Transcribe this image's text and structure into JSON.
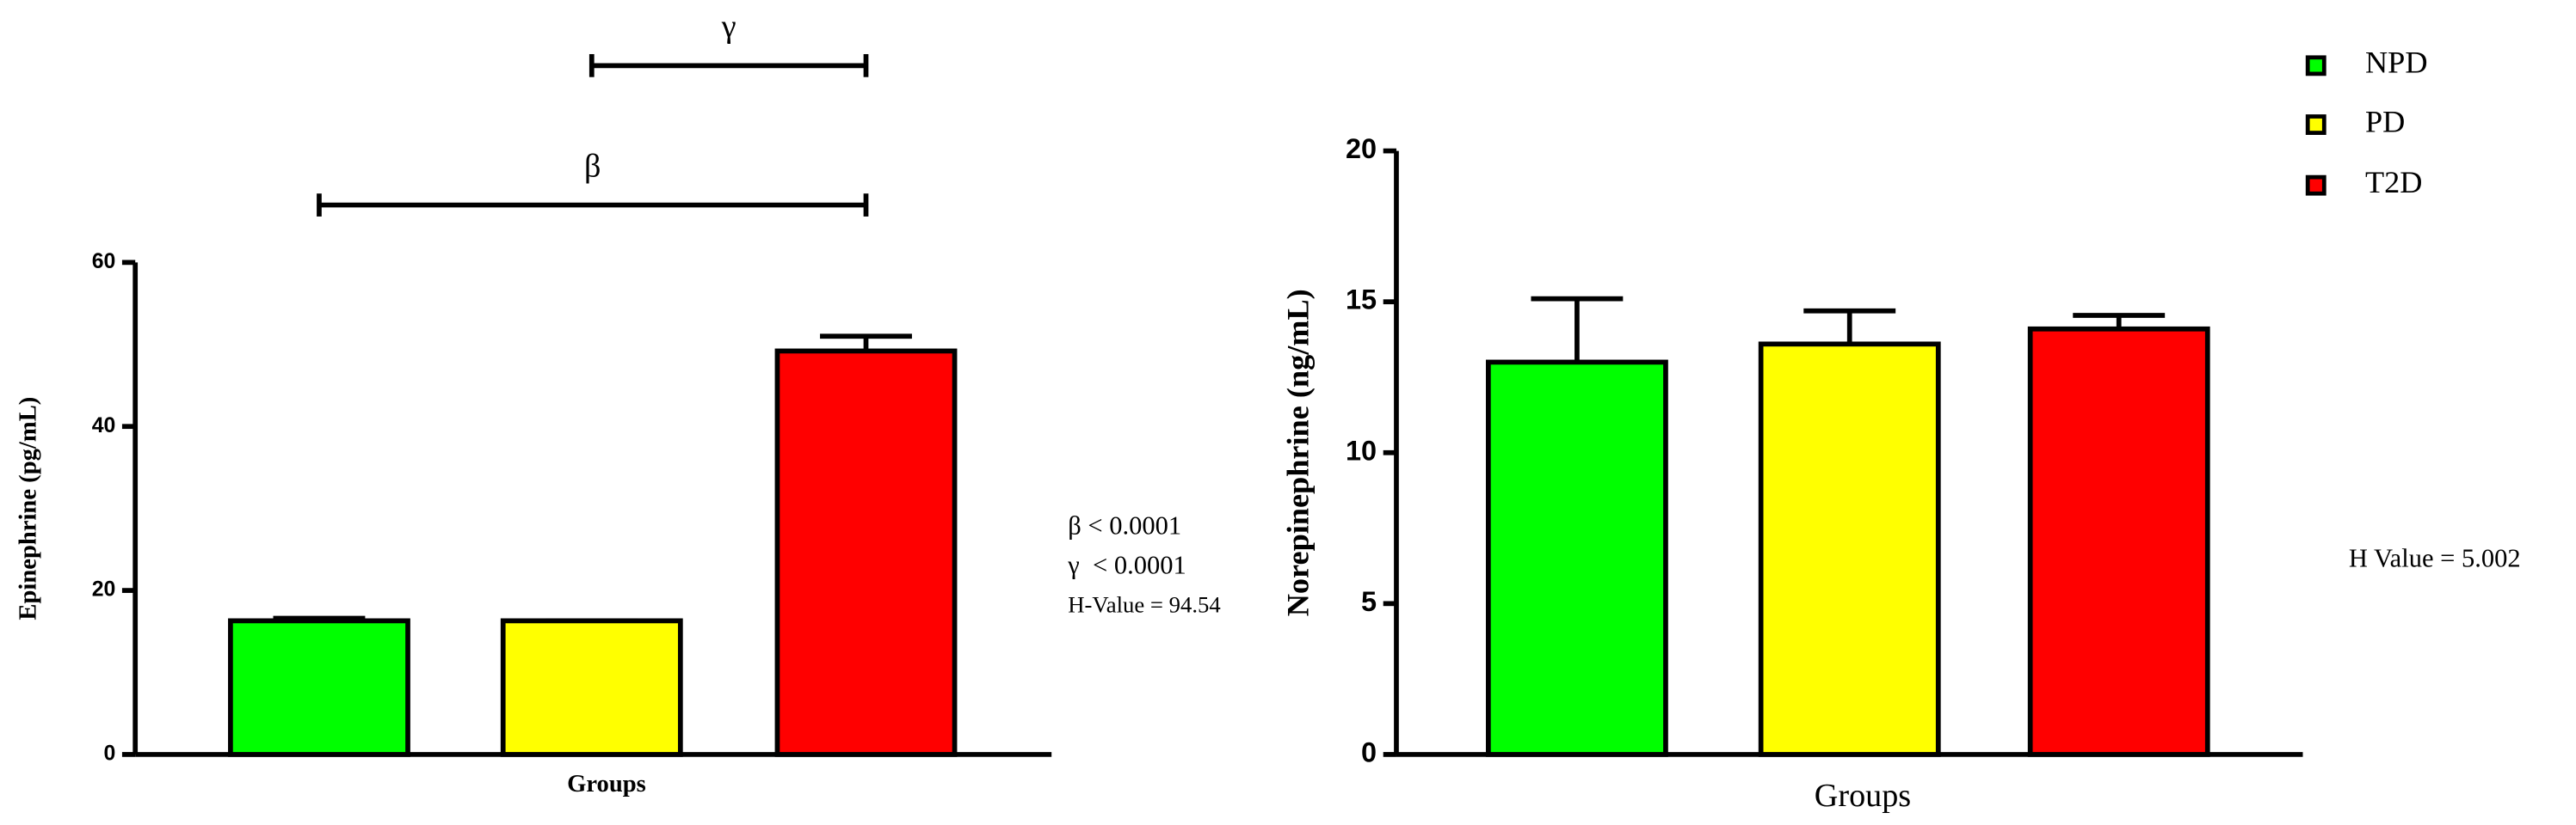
{
  "chart_data": [
    {
      "type": "bar",
      "ylabel": "Epinephrine (pg/mL)",
      "xlabel": "Groups",
      "ylim": [
        0,
        60
      ],
      "yticks": [
        0,
        20,
        40,
        60
      ],
      "series": [
        {
          "color": "#00ff00",
          "values": [
            16.3
          ],
          "errors": [
            0.3
          ]
        },
        {
          "color": "#ffff00",
          "values": [
            16.3
          ],
          "errors": [
            0
          ]
        },
        {
          "color": "#ff0000",
          "values": [
            49.2
          ],
          "errors": [
            1.8
          ]
        }
      ],
      "brackets": [
        {
          "label": "β",
          "from": 0,
          "to": 2
        },
        {
          "label": "γ",
          "from": 1,
          "to": 2
        }
      ],
      "annotations": [
        "β < 0.0001",
        "γ  < 0.0001",
        "H-Value = 94.54"
      ]
    },
    {
      "type": "bar",
      "ylabel": "Norepinephrine (ng/mL)",
      "xlabel": "Groups",
      "ylim": [
        0,
        20
      ],
      "yticks": [
        0,
        5,
        10,
        15,
        20
      ],
      "series": [
        {
          "name": "NPD",
          "color": "#00ff00",
          "values": [
            13.0
          ],
          "errors": [
            2.1
          ]
        },
        {
          "name": "PD",
          "color": "#ffff00",
          "values": [
            13.6
          ],
          "errors": [
            1.1
          ]
        },
        {
          "name": "T2D",
          "color": "#ff0000",
          "values": [
            14.1
          ],
          "errors": [
            0.45
          ]
        }
      ],
      "annotations": [
        "H Value = 5.002"
      ]
    }
  ]
}
